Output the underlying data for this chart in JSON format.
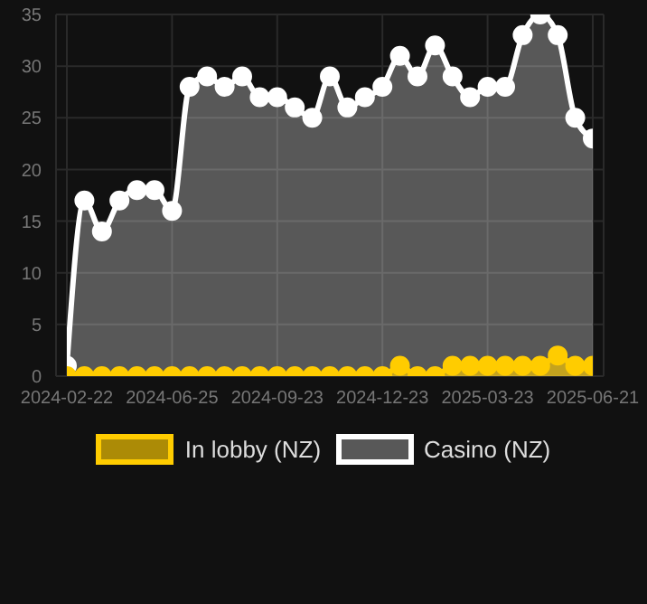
{
  "chart_data": {
    "type": "area",
    "categories": [
      "2024-02-22",
      null,
      null,
      null,
      null,
      null,
      "2024-06-25",
      null,
      null,
      null,
      null,
      null,
      "2024-09-23",
      null,
      null,
      null,
      null,
      null,
      "2024-12-23",
      null,
      null,
      null,
      null,
      null,
      "2025-03-23",
      null,
      null,
      null,
      null,
      null,
      "2025-06-21"
    ],
    "series": [
      {
        "name": "In lobby (NZ)",
        "color": "#ffcc00",
        "values": [
          0,
          0,
          0,
          0,
          0,
          0,
          0,
          0,
          0,
          0,
          0,
          0,
          0,
          0,
          0,
          0,
          0,
          0,
          0,
          1,
          0,
          0,
          1,
          1,
          1,
          1,
          1,
          1,
          2,
          1,
          1
        ]
      },
      {
        "name": "Casino (NZ)",
        "color": "#ffffff",
        "values": [
          1,
          17,
          14,
          17,
          18,
          18,
          16,
          28,
          29,
          28,
          29,
          27,
          27,
          26,
          25,
          29,
          26,
          27,
          28,
          31,
          29,
          32,
          29,
          27,
          28,
          28,
          33,
          35,
          33,
          25,
          23
        ]
      }
    ],
    "ylim": [
      0,
      35
    ],
    "yticks": [
      0,
      5,
      10,
      15,
      20,
      25,
      30,
      35
    ],
    "grid": true,
    "legend": "bottom",
    "marker": "circle",
    "line_style": "solid"
  }
}
